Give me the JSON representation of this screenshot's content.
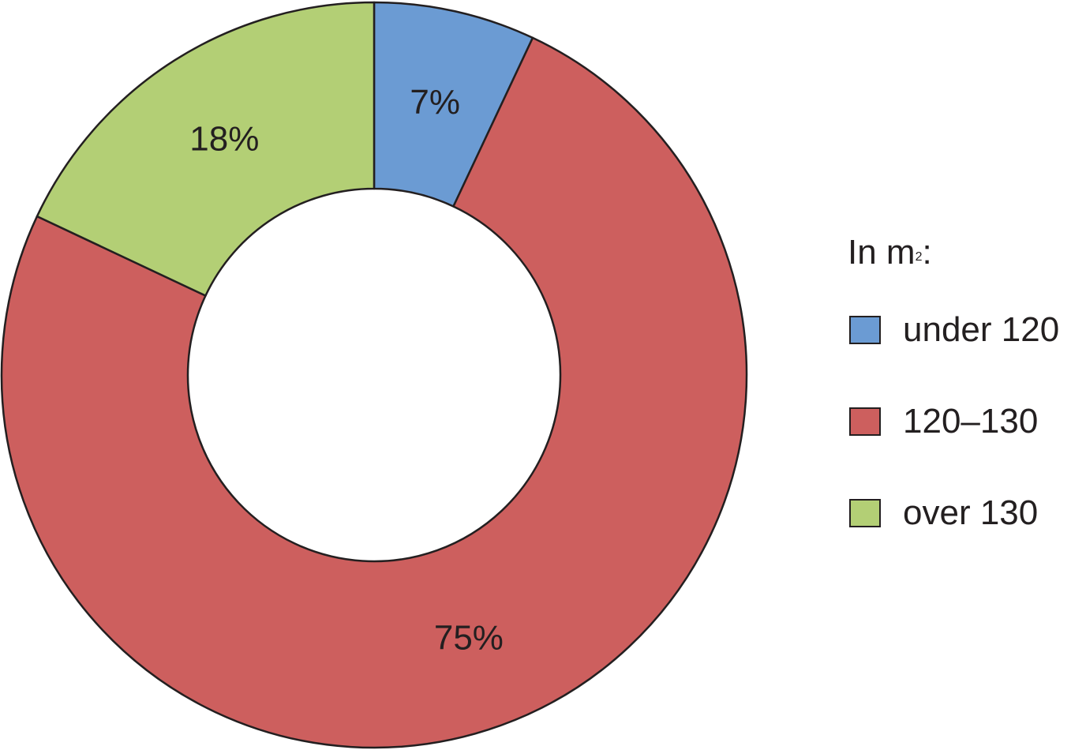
{
  "chart_data": {
    "type": "pie",
    "variant": "donut",
    "legend_title_prefix": "In m",
    "legend_title_sup": "2",
    "legend_title_suffix": ":",
    "legend_position": "right",
    "slices": [
      {
        "label": "under 120",
        "value": 7,
        "display": "7%",
        "color": "#6b9bd3"
      },
      {
        "label": "120–130",
        "value": 75,
        "display": "75%",
        "color": "#cd5f5e"
      },
      {
        "label": "over 130",
        "value": 18,
        "display": "18%",
        "color": "#b3cf75"
      }
    ]
  }
}
